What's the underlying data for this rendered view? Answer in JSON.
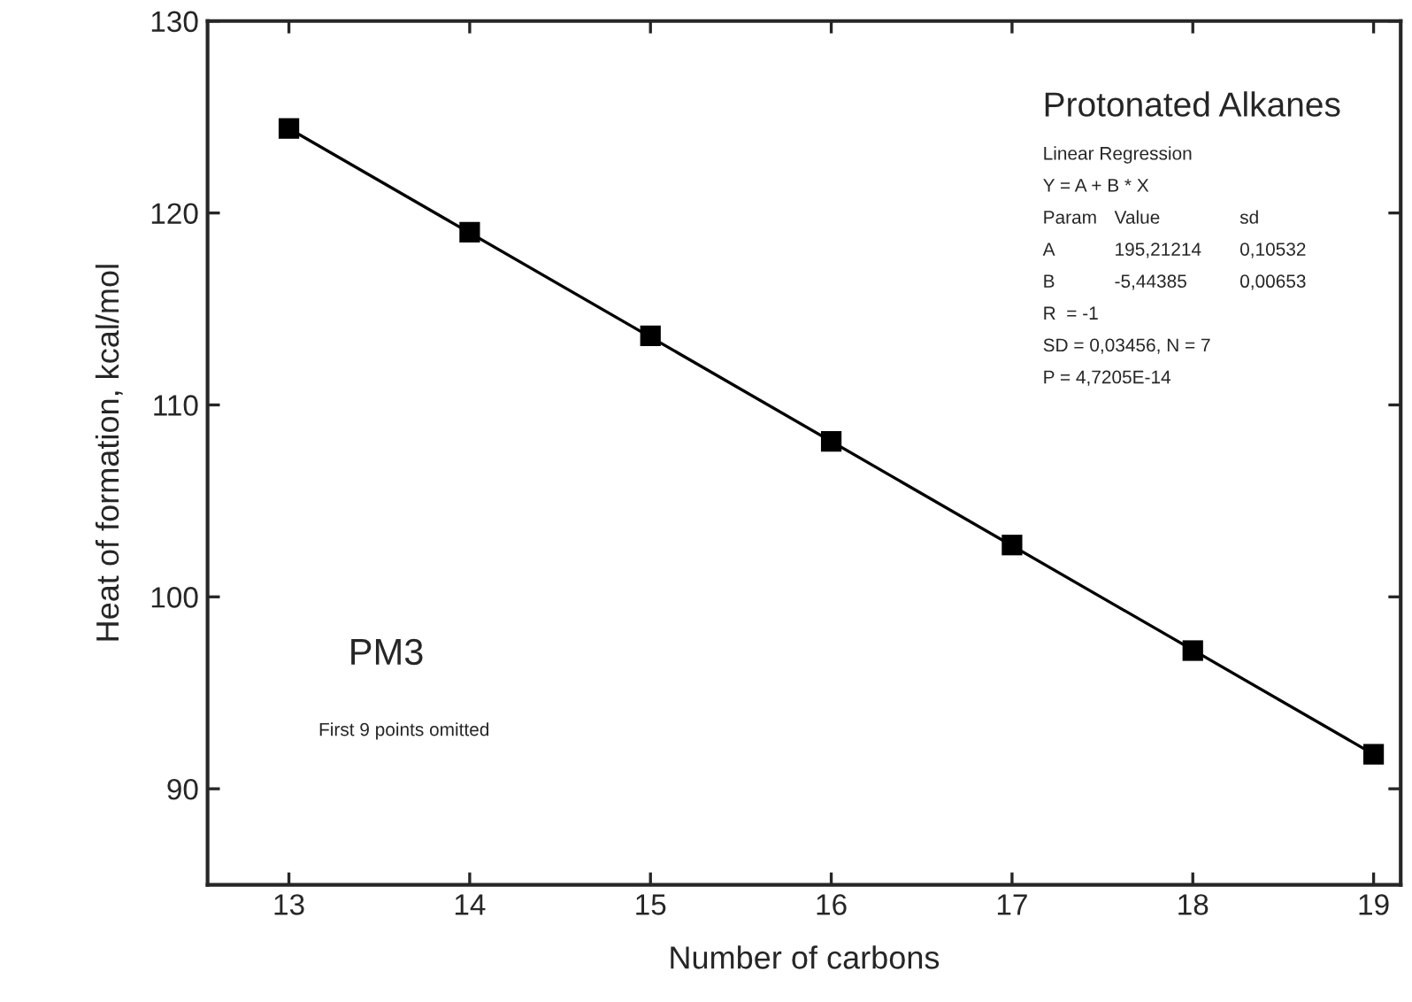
{
  "chart_data": {
    "type": "scatter",
    "xlabel": "Number of carbons",
    "ylabel": "Heat of formation, kcal/mol",
    "x": [
      13,
      14,
      15,
      16,
      17,
      18,
      19
    ],
    "series": [
      {
        "color": "#000000",
        "marker": "square",
        "values": [
          124.4,
          119.0,
          113.6,
          108.1,
          102.7,
          97.2,
          91.8
        ]
      },
      {
        "type": "line",
        "color": "#000000",
        "marker": "none",
        "line_style": "solid",
        "x": [
          13,
          19
        ],
        "values": [
          124.4,
          91.8
        ]
      }
    ],
    "xlim": [
      12.55,
      19.15
    ],
    "ylim": [
      85,
      130
    ],
    "xticks": [
      13,
      14,
      15,
      16,
      17,
      18,
      19
    ],
    "yticks": [
      90,
      100,
      110,
      120,
      130
    ],
    "grid": false,
    "legend": false,
    "annotations": [
      "Protonated Alkanes",
      "Linear Regression",
      "Y = A + B * X",
      "Param",
      "Value",
      "sd",
      "A",
      "195,21214",
      "0,10532",
      "B",
      "-5,44385",
      "0,00653",
      "R  = -1",
      "SD = 0,03456, N = 7",
      "P = 4,7205E-14",
      "PM3",
      "First 9 points omitted"
    ]
  }
}
